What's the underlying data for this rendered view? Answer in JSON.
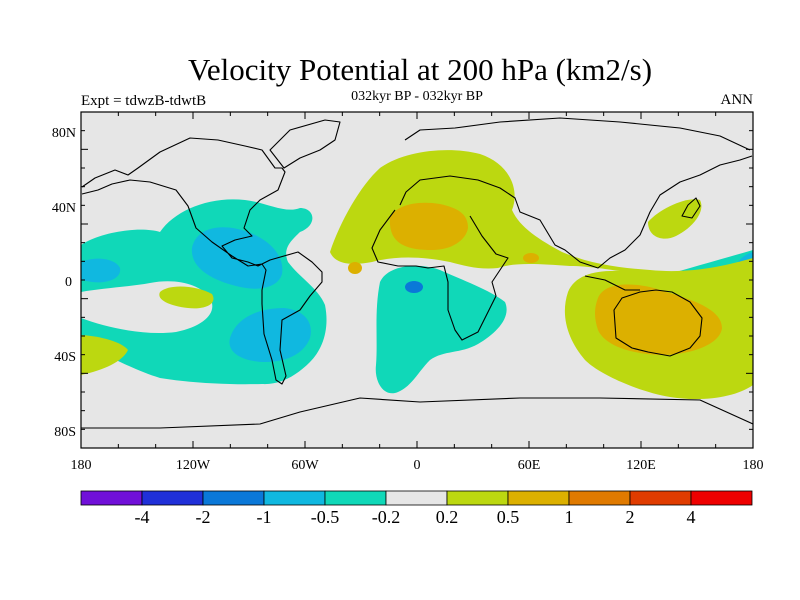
{
  "title": "Velocity Potential at 200 hPa (km2/s)",
  "subtitle_left": "Expt = tdwzB-tdwtB",
  "subtitle_center": "032kyr BP - 032kyr BP",
  "subtitle_right": "ANN",
  "lat_ticks": [
    "80N",
    "40N",
    "0",
    "40S",
    "80S"
  ],
  "lon_ticks": [
    "180",
    "120W",
    "60W",
    "0",
    "60E",
    "120E",
    "180"
  ],
  "colorbar": {
    "colors": [
      "#7010d8",
      "#2030d8",
      "#0a78d8",
      "#10b8e0",
      "#10d8b8",
      "#e6e6e6",
      "#bcd810",
      "#dcb000",
      "#e07a00",
      "#e03c00",
      "#ee0000"
    ],
    "labels": [
      "-4",
      "-2",
      "-1",
      "-0.5",
      "-0.2",
      "0.2",
      "0.5",
      "1",
      "2",
      "4"
    ]
  },
  "map_colors": {
    "background": "#e6e6e6",
    "neg1": "#10d8b8",
    "neg2": "#10b8e0",
    "neg3": "#0a78d8",
    "pos1": "#bcd810",
    "pos2": "#dcb000"
  }
}
